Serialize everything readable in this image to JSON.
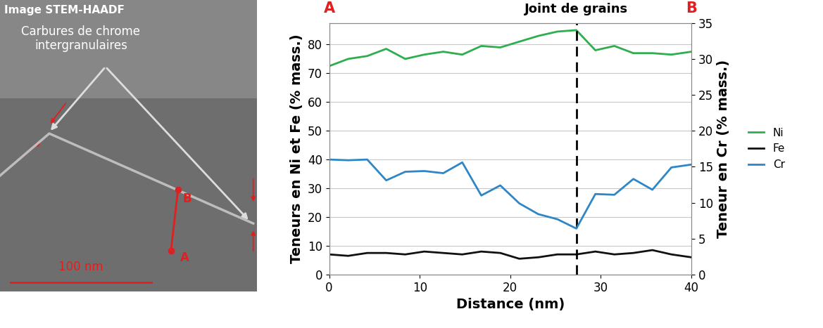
{
  "chart_data": {
    "type": "line",
    "x": [
      0,
      2.1,
      4.2,
      6.3,
      8.4,
      10.5,
      12.6,
      14.7,
      16.8,
      18.9,
      21,
      23.1,
      25.2,
      27.3,
      29.4,
      31.5,
      33.6,
      35.7,
      37.8,
      40
    ],
    "series": [
      {
        "name": "Ni",
        "color": "#2eae4e",
        "values": [
          72.5,
          75,
          76,
          78.5,
          75,
          76.5,
          77.5,
          76.5,
          79.5,
          79,
          81,
          83,
          84.5,
          85,
          78,
          79.5,
          77,
          77,
          76.5,
          77.5
        ]
      },
      {
        "name": "Fe",
        "color": "#111111",
        "values": [
          7,
          6.5,
          7.5,
          7.5,
          7,
          8,
          7.5,
          7,
          8,
          7.5,
          5.5,
          6,
          7,
          7,
          8,
          7,
          7.5,
          8.5,
          7,
          6
        ]
      },
      {
        "name": "Cr",
        "color": "#2f86c6",
        "axis": "y2",
        "values": [
          16,
          15.9,
          16,
          13.1,
          14.3,
          14.4,
          14.1,
          15.6,
          11,
          12.4,
          9.9,
          8.4,
          7.7,
          6.4,
          11.2,
          11.1,
          13.3,
          11.8,
          14.9,
          15.3
        ]
      }
    ],
    "x_label": "Distance (nm)",
    "y_label": "Teneurs en Ni et Fe (% mass.)",
    "y2_label": "Teneur en Cr (% mass.)",
    "xlim": [
      0,
      40
    ],
    "xticks": [
      0,
      10,
      20,
      30,
      40
    ],
    "ylim": [
      0,
      87.5
    ],
    "yticks": [
      0,
      10,
      20,
      30,
      40,
      50,
      60,
      70,
      80
    ],
    "y2lim": [
      0,
      35
    ],
    "y2ticks": [
      0,
      5,
      10,
      15,
      20,
      25,
      30,
      35
    ],
    "grid": true,
    "legend": "center left",
    "annotations": [
      {
        "text": "Joint de grains",
        "x": 27.3
      },
      {
        "text": "A",
        "x": 0
      },
      {
        "text": "B",
        "x": 40
      }
    ]
  },
  "image": {
    "title": "Image STEM-HAADF",
    "label": "Carbures de chrome\nintergranulaires",
    "scale_bar": "100 nm",
    "points": [
      "A",
      "B"
    ]
  }
}
